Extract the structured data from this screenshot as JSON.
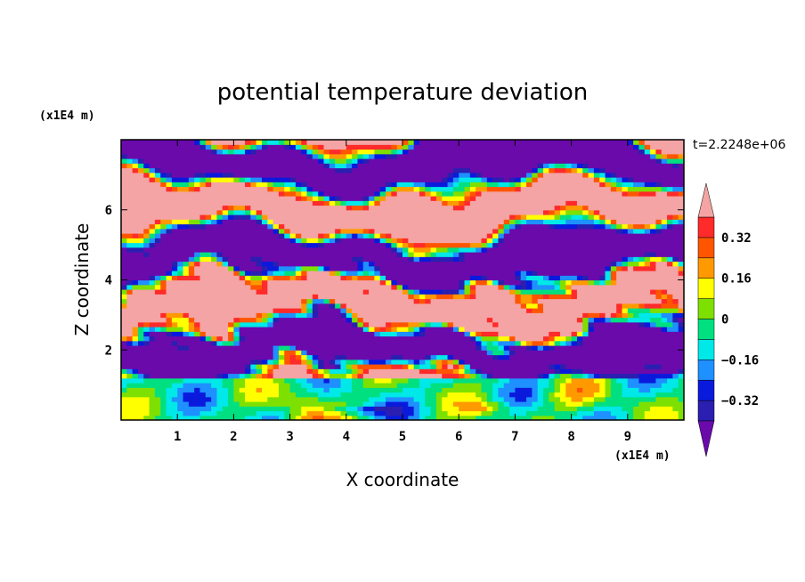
{
  "chart_data": {
    "type": "contour",
    "title": "potential temperature deviation",
    "xlabel": "X coordinate",
    "ylabel": "Z coordinate",
    "x_unit": "(x1E4 m)",
    "y_unit": "(x1E4 m)",
    "time_label": "t=2.2248e+06",
    "xlim": [
      0,
      10
    ],
    "ylim": [
      0,
      8
    ],
    "x_ticks": [
      1,
      2,
      3,
      4,
      5,
      6,
      7,
      8,
      9
    ],
    "y_ticks": [
      2,
      4,
      6
    ],
    "colorbar": {
      "levels": [
        -0.4,
        -0.32,
        -0.24,
        -0.16,
        -0.08,
        0,
        0.08,
        0.16,
        0.24,
        0.32,
        0.4
      ],
      "tick_labels": [
        "0.32",
        "0.16",
        "0",
        "−0.16",
        "−0.32"
      ],
      "tick_values": [
        0.32,
        0.16,
        0,
        -0.16,
        -0.32
      ],
      "colors": [
        "#6a0aab",
        "#2a1fb0",
        "#0a1adc",
        "#1e90ff",
        "#00e8e8",
        "#00e080",
        "#7ee000",
        "#ffff00",
        "#ff9900",
        "#ff5500",
        "#ff2a2a",
        "#f4a4a4"
      ],
      "extend": "both"
    }
  }
}
